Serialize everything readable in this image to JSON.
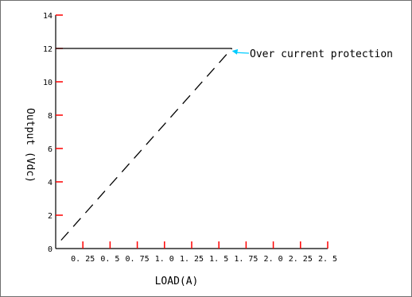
{
  "chart_data": {
    "type": "line",
    "xlabel": "LOAD(A)",
    "ylabel": "Output (Vdc)",
    "xlim": [
      0,
      2.5
    ],
    "ylim": [
      0,
      14
    ],
    "x_ticks": [
      "0. 25",
      "0. 5",
      "0. 75",
      "1. 0",
      "1. 25",
      "1. 5",
      "1. 75",
      "2. 0",
      "2. 25",
      "2. 5"
    ],
    "x_tick_values": [
      0.25,
      0.5,
      0.75,
      1.0,
      1.25,
      1.5,
      1.75,
      2.0,
      2.25,
      2.5
    ],
    "y_ticks": [
      "0",
      "2",
      "4",
      "6",
      "8",
      "10",
      "12",
      "14"
    ],
    "y_tick_values": [
      0,
      2,
      4,
      6,
      8,
      10,
      12,
      14
    ],
    "tick_color": "#ff0000",
    "series": [
      {
        "style": "solid",
        "color": "#000000",
        "x": [
          0,
          1.62
        ],
        "y": [
          12,
          12
        ]
      },
      {
        "style": "dashed",
        "color": "#000000",
        "x": [
          0.05,
          1.62
        ],
        "y": [
          0.5,
          12
        ]
      }
    ],
    "annotation": {
      "text": "Over current protection",
      "arrow_color": "#00ccff",
      "points_to": {
        "x": 1.62,
        "y": 11.9
      }
    },
    "grid": false
  }
}
